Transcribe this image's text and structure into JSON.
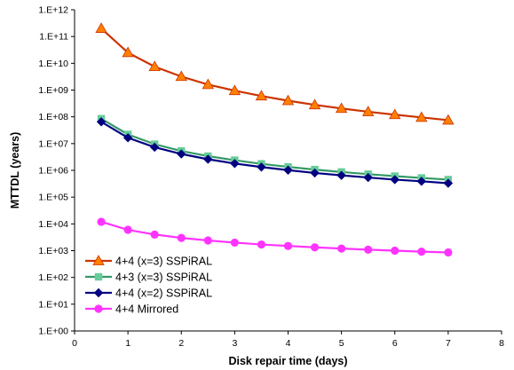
{
  "chart_data": {
    "type": "line",
    "title": "",
    "xlabel": "Disk repair time (days)",
    "ylabel": "MTTDL (years)",
    "xlim": [
      0,
      8
    ],
    "ylim": [
      1,
      1000000000000
    ],
    "yscale": "log",
    "grid": false,
    "legend_position": "bottom-left",
    "x_ticks": [
      "0",
      "1",
      "2",
      "3",
      "4",
      "5",
      "6",
      "7",
      "8"
    ],
    "y_ticks": [
      "1.E+00",
      "1.E+01",
      "1.E+02",
      "1.E+03",
      "1.E+04",
      "1.E+05",
      "1.E+06",
      "1.E+07",
      "1.E+08",
      "1.E+09",
      "1.E+10",
      "1.E+11",
      "1.E+12"
    ],
    "x": [
      0.5,
      1,
      1.5,
      2,
      2.5,
      3,
      3.5,
      4,
      4.5,
      5,
      5.5,
      6,
      6.5,
      7
    ],
    "series": [
      {
        "name": "4+4 (x=3) SSPiRAL",
        "color": "#cc3300",
        "marker_color": "#ff8000",
        "marker": "triangle",
        "values": [
          200000000000,
          25000000000,
          7500000000,
          3200000000,
          1600000000,
          950000000,
          600000000,
          400000000,
          280000000,
          205000000,
          155000000,
          120000000,
          95000000,
          75000000
        ]
      },
      {
        "name": "4+3 (x=3) SSPiRAL",
        "color": "#339966",
        "marker_color": "#66cc99",
        "marker": "square",
        "values": [
          85000000,
          22000000,
          9500000,
          5300000,
          3400000,
          2400000,
          1750000,
          1350000,
          1070000,
          870000,
          720000,
          610000,
          520000,
          450000
        ]
      },
      {
        "name": "4+4 (x=2) SSPiRAL",
        "color": "#000080",
        "marker_color": "#000080",
        "marker": "diamond",
        "values": [
          65000000,
          16500000,
          7300000,
          4100000,
          2600000,
          1800000,
          1330000,
          1020000,
          800000,
          650000,
          540000,
          450000,
          390000,
          330000
        ]
      },
      {
        "name": "4+4 Mirrored",
        "color": "#ff33ff",
        "marker_color": "#ff33ff",
        "marker": "circle",
        "values": [
          12000,
          6000,
          4000,
          3000,
          2400,
          2000,
          1700,
          1500,
          1330,
          1200,
          1090,
          1000,
          920,
          860
        ]
      }
    ]
  }
}
